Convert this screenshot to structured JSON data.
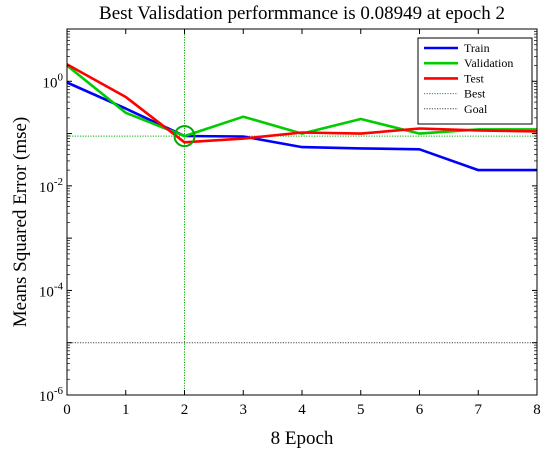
{
  "chart_data": {
    "type": "line",
    "title": "Best Valisdation performmance is 0.08949 at epoch 2",
    "xlabel": "8 Epoch",
    "ylabel": "Means Squared Error (mse)",
    "xlim": [
      0,
      8
    ],
    "ylim": [
      1e-06,
      10
    ],
    "yscale": "log",
    "x_ticks": [
      "0",
      "1",
      "2",
      "3",
      "4",
      "5",
      "6",
      "7",
      "8"
    ],
    "y_ticks": [
      {
        "value": 1,
        "base": "10",
        "exp": "0"
      },
      {
        "value": 0.01,
        "base": "10",
        "exp": "-2"
      },
      {
        "value": 0.0001,
        "base": "10",
        "exp": "-4"
      },
      {
        "value": 1e-06,
        "base": "10",
        "exp": "-6"
      }
    ],
    "grid": false,
    "legend_position": "top-right",
    "series": [
      {
        "name": "Train",
        "color": "#0000ff",
        "x": [
          0,
          1,
          2,
          3,
          4,
          5,
          6,
          7,
          8
        ],
        "y": [
          0.95,
          0.3,
          0.09,
          0.088,
          0.055,
          0.052,
          0.05,
          0.02,
          0.02
        ]
      },
      {
        "name": "Validation",
        "color": "#00cc00",
        "x": [
          0,
          1,
          2,
          3,
          4,
          5,
          6,
          7,
          8
        ],
        "y": [
          2.0,
          0.25,
          0.08949,
          0.21,
          0.1,
          0.19,
          0.1,
          0.12,
          0.12
        ]
      },
      {
        "name": "Test",
        "color": "#ff0000",
        "x": [
          0,
          1,
          2,
          3,
          4,
          5,
          6,
          7,
          8
        ],
        "y": [
          2.1,
          0.5,
          0.068,
          0.08,
          0.105,
          0.1,
          0.125,
          0.115,
          0.11
        ]
      }
    ],
    "best": {
      "name": "Best",
      "epoch": 2,
      "value": 0.08949,
      "color": "#00aa00"
    },
    "goal": {
      "name": "Goal",
      "value": 1e-05,
      "color": "#444444"
    }
  }
}
